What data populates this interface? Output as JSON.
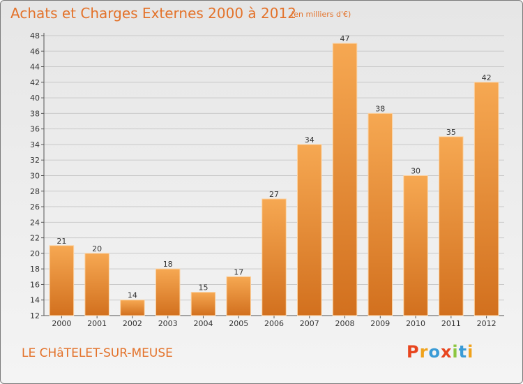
{
  "header": {
    "title": "Achats et Charges Externes 2000 à 2012",
    "unit": "(en milliers d'€)"
  },
  "footer": {
    "commune": "LE CHâTELET-SUR-MEUSE",
    "logo": "Proxiti"
  },
  "colors": {
    "accent": "#e3722a",
    "bar_top": "#f6a852",
    "bar_bottom": "#d2701e",
    "logo_letters": [
      "#e8451e",
      "#f0a21b",
      "#3a9bd6",
      "#e8451e",
      "#8cc63f",
      "#3a9bd6",
      "#f0a21b"
    ]
  },
  "chart_data": {
    "type": "bar",
    "title": "Achats et Charges Externes 2000 à 2012",
    "xlabel": "",
    "ylabel": "",
    "categories": [
      "2000",
      "2001",
      "2002",
      "2003",
      "2004",
      "2005",
      "2006",
      "2007",
      "2008",
      "2009",
      "2010",
      "2011",
      "2012"
    ],
    "values": [
      21,
      20,
      14,
      18,
      15,
      17,
      27,
      34,
      47,
      38,
      30,
      35,
      42
    ],
    "ylim": [
      12,
      48
    ],
    "yticks": [
      12,
      14,
      16,
      18,
      20,
      22,
      24,
      26,
      28,
      30,
      32,
      34,
      36,
      38,
      40,
      42,
      44,
      46,
      48
    ],
    "grid": true,
    "legend": "none"
  }
}
